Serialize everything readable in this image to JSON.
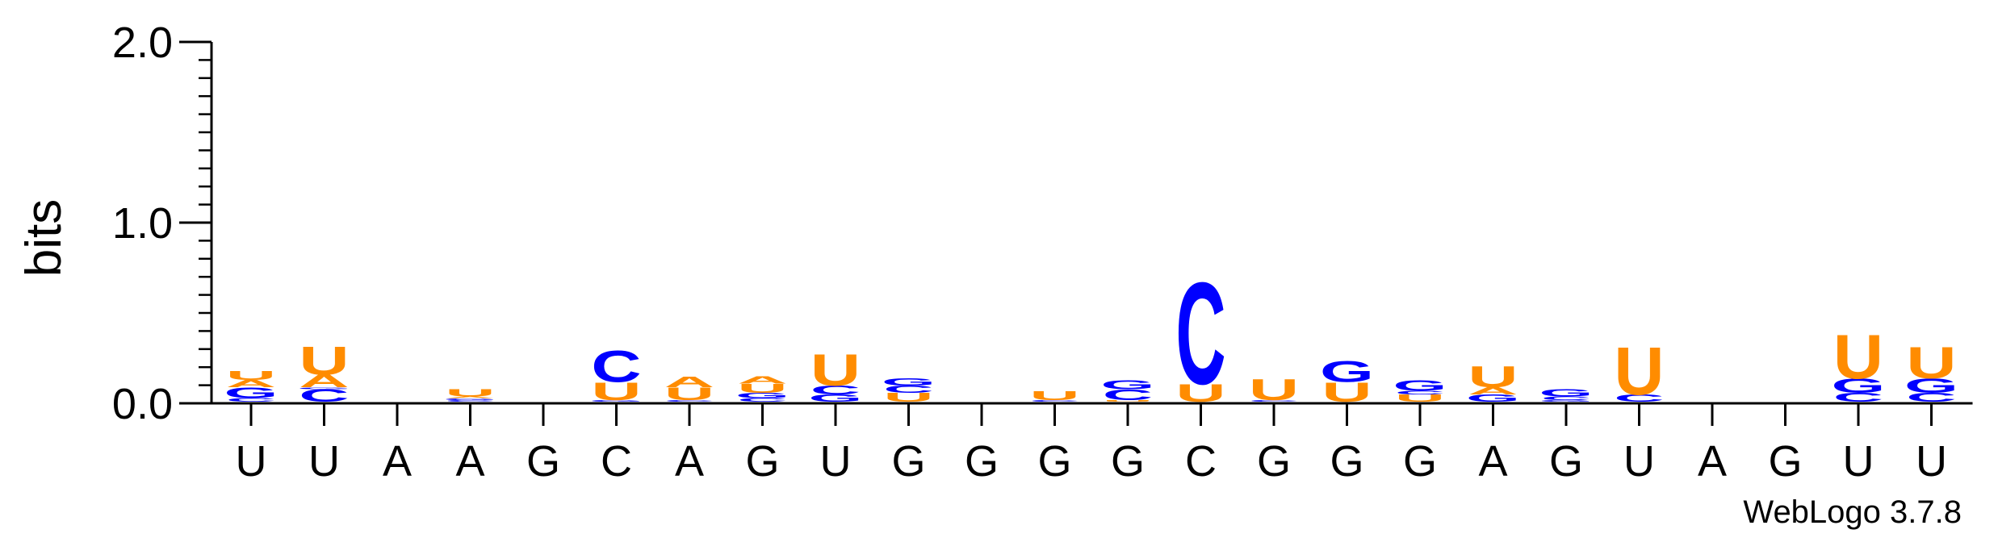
{
  "chart_data": {
    "type": "sequence-logo",
    "ylabel": "bits",
    "ylim": [
      0,
      2.0
    ],
    "yticks": [
      "0.0",
      "1.0",
      "2.0"
    ],
    "colors": {
      "C": "#0000ff",
      "G": "#0000ff",
      "U": "#ff8c00",
      "A": "#ff8c00"
    },
    "positions": [
      {
        "label": "U",
        "stack": [
          [
            "C",
            0.02
          ],
          [
            "G",
            0.06
          ],
          [
            "A",
            0.04
          ],
          [
            "U",
            0.05
          ]
        ]
      },
      {
        "label": "U",
        "stack": [
          [
            "C",
            0.07
          ],
          [
            "G",
            0.01
          ],
          [
            "A",
            0.07
          ],
          [
            "U",
            0.16
          ]
        ]
      },
      {
        "label": "A",
        "stack": [
          [
            "C",
            0.0
          ],
          [
            "G",
            0.0
          ],
          [
            "A",
            0.0
          ],
          [
            "U",
            0.0
          ]
        ]
      },
      {
        "label": "A",
        "stack": [
          [
            "C",
            0.01
          ],
          [
            "G",
            0.01
          ],
          [
            "A",
            0.01
          ],
          [
            "U",
            0.04
          ]
        ]
      },
      {
        "label": "G",
        "stack": [
          [
            "C",
            0.0
          ],
          [
            "G",
            0.0
          ],
          [
            "A",
            0.0
          ],
          [
            "U",
            0.0
          ]
        ]
      },
      {
        "label": "C",
        "stack": [
          [
            "G",
            0.01
          ],
          [
            "U",
            0.1
          ],
          [
            "C",
            0.18
          ]
        ]
      },
      {
        "label": "A",
        "stack": [
          [
            "C",
            0.01
          ],
          [
            "U",
            0.07
          ],
          [
            "A",
            0.06
          ]
        ]
      },
      {
        "label": "G",
        "stack": [
          [
            "C",
            0.02
          ],
          [
            "G",
            0.03
          ],
          [
            "U",
            0.05
          ],
          [
            "A",
            0.04
          ]
        ]
      },
      {
        "label": "U",
        "stack": [
          [
            "G",
            0.04
          ],
          [
            "C",
            0.05
          ],
          [
            "U",
            0.18
          ]
        ]
      },
      {
        "label": "G",
        "stack": [
          [
            "U",
            0.05
          ],
          [
            "C",
            0.04
          ],
          [
            "G",
            0.04
          ]
        ]
      },
      {
        "label": "G",
        "stack": [
          [
            "C",
            0.0
          ],
          [
            "G",
            0.0
          ],
          [
            "A",
            0.0
          ],
          [
            "U",
            0.0
          ]
        ]
      },
      {
        "label": "G",
        "stack": [
          [
            "C",
            0.01
          ],
          [
            "U",
            0.05
          ]
        ]
      },
      {
        "label": "G",
        "stack": [
          [
            "U",
            0.01
          ],
          [
            "C",
            0.06
          ],
          [
            "G",
            0.05
          ]
        ]
      },
      {
        "label": "C",
        "stack": [
          [
            "U",
            0.1
          ],
          [
            "C",
            0.58
          ]
        ]
      },
      {
        "label": "G",
        "stack": [
          [
            "C",
            0.01
          ],
          [
            "U",
            0.12
          ]
        ]
      },
      {
        "label": "G",
        "stack": [
          [
            "U",
            0.11
          ],
          [
            "G",
            0.12
          ]
        ]
      },
      {
        "label": "G",
        "stack": [
          [
            "U",
            0.04
          ],
          [
            "C",
            0.02
          ],
          [
            "G",
            0.06
          ]
        ]
      },
      {
        "label": "A",
        "stack": [
          [
            "G",
            0.04
          ],
          [
            "A",
            0.04
          ],
          [
            "U",
            0.12
          ]
        ]
      },
      {
        "label": "G",
        "stack": [
          [
            "G",
            0.01
          ],
          [
            "C",
            0.02
          ],
          [
            "G",
            0.04
          ]
        ]
      },
      {
        "label": "U",
        "stack": [
          [
            "C",
            0.04
          ],
          [
            "U",
            0.27
          ]
        ]
      },
      {
        "label": "A",
        "stack": [
          [
            "C",
            0.0
          ],
          [
            "G",
            0.0
          ],
          [
            "A",
            0.0
          ],
          [
            "U",
            0.0
          ]
        ]
      },
      {
        "label": "G",
        "stack": [
          [
            "C",
            0.0
          ],
          [
            "G",
            0.0
          ],
          [
            "A",
            0.0
          ],
          [
            "U",
            0.0
          ]
        ]
      },
      {
        "label": "U",
        "stack": [
          [
            "C",
            0.05
          ],
          [
            "G",
            0.08
          ],
          [
            "U",
            0.25
          ]
        ]
      },
      {
        "label": "U",
        "stack": [
          [
            "C",
            0.05
          ],
          [
            "G",
            0.08
          ],
          [
            "U",
            0.18
          ]
        ]
      }
    ]
  },
  "footer": {
    "software": "WebLogo 3.7.8"
  }
}
